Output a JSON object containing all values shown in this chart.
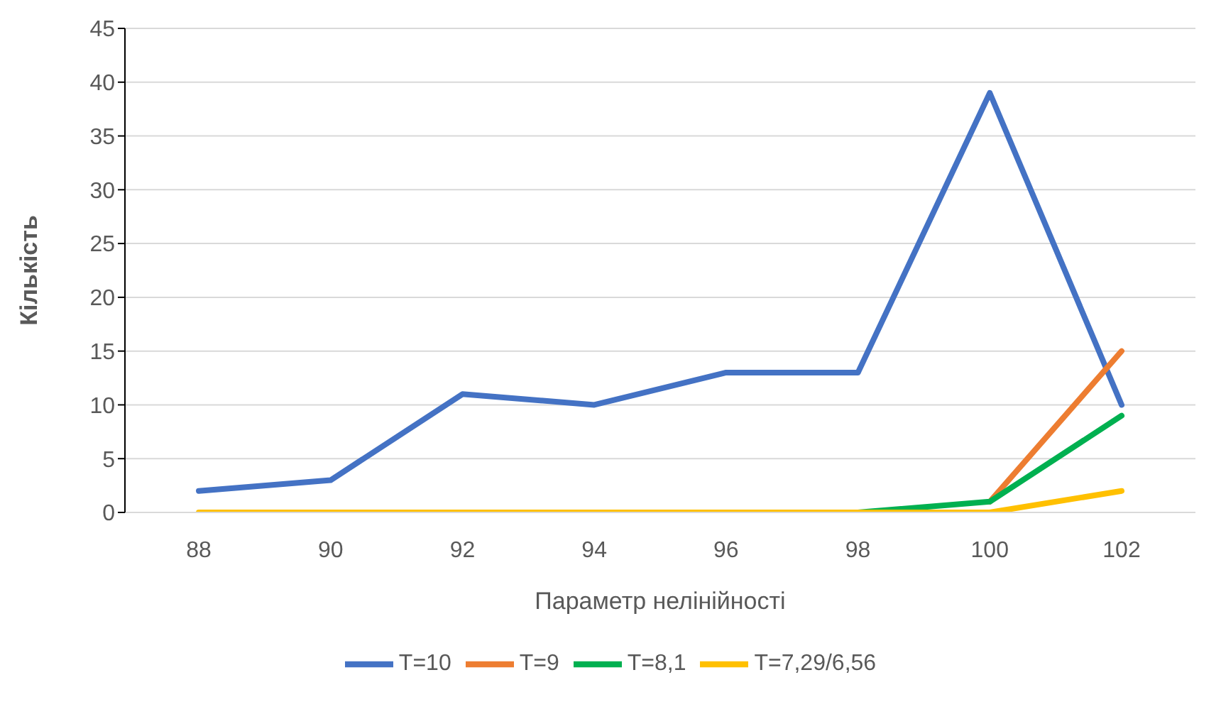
{
  "chart_data": {
    "type": "line",
    "xlabel": "Параметр нелінійності",
    "ylabel": "Кількість",
    "categories": [
      "88",
      "90",
      "92",
      "94",
      "96",
      "98",
      "100",
      "102"
    ],
    "series": [
      {
        "name": "T=10",
        "color": "#4472c4",
        "values": [
          2,
          3,
          11,
          10,
          13,
          13,
          39,
          10
        ]
      },
      {
        "name": "T=9",
        "color": "#ed7d31",
        "values": [
          null,
          null,
          null,
          null,
          null,
          null,
          1,
          15
        ]
      },
      {
        "name": "T=8,1",
        "color": "#00b050",
        "values": [
          null,
          null,
          null,
          null,
          null,
          0,
          1,
          9
        ]
      },
      {
        "name": "T=7,29/6,56",
        "color": "#ffc000",
        "values": [
          0,
          0,
          0,
          0,
          0,
          0,
          0,
          2
        ]
      }
    ],
    "ylim": [
      0,
      45
    ],
    "yticks": [
      0,
      5,
      10,
      15,
      20,
      25,
      30,
      35,
      40,
      45
    ],
    "grid": "y",
    "legend": "bottom",
    "marker": "none",
    "line_style": "solid"
  }
}
